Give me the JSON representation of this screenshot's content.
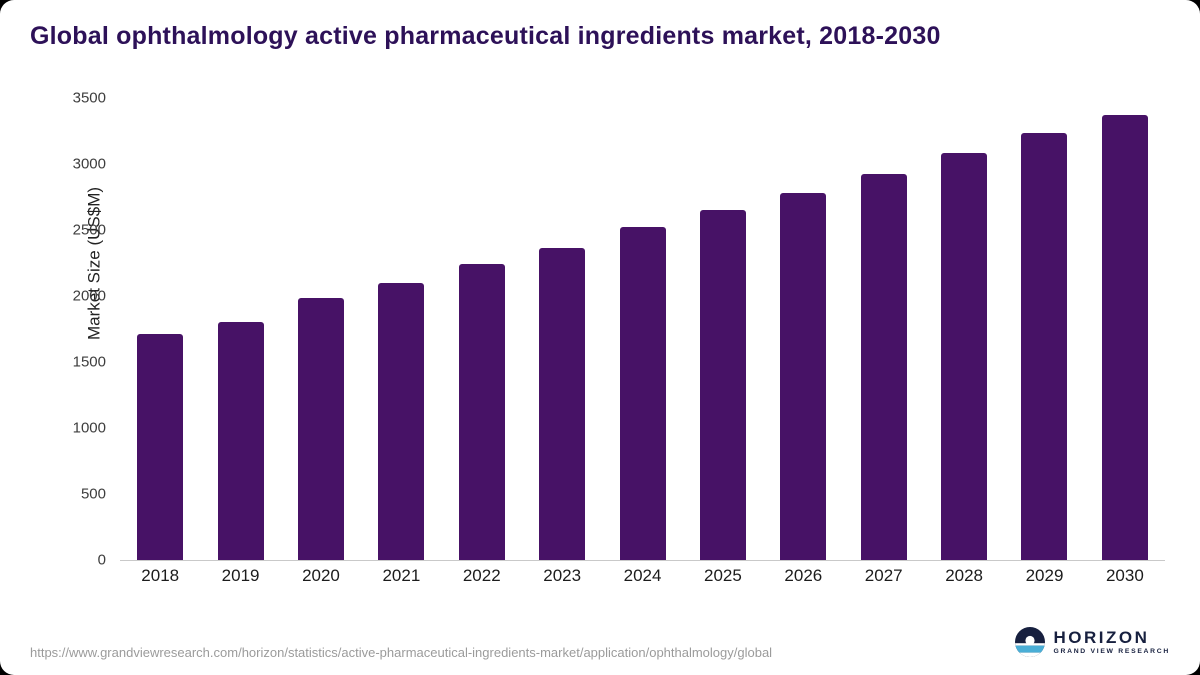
{
  "chart_data": {
    "type": "bar",
    "title": "Global ophthalmology active pharmaceutical ingredients market, 2018-2030",
    "ylabel": "Market Size (US$M)",
    "xlabel": "",
    "ylim": [
      0,
      3500
    ],
    "yticks": [
      0,
      500,
      1000,
      1500,
      2000,
      2500,
      3000,
      3500
    ],
    "grid": false,
    "bar_color": "#471266",
    "categories": [
      "2018",
      "2019",
      "2020",
      "2021",
      "2022",
      "2023",
      "2024",
      "2025",
      "2026",
      "2027",
      "2028",
      "2029",
      "2030"
    ],
    "values": [
      1710,
      1800,
      1985,
      2100,
      2240,
      2360,
      2525,
      2655,
      2780,
      2925,
      3080,
      3235,
      3370
    ]
  },
  "footer": {
    "source_url": "https://www.grandviewresearch.com/horizon/statistics/active-pharmaceutical-ingredients-market/application/ophthalmology/global",
    "logo": {
      "name": "HORIZON",
      "subtitle": "GRAND VIEW RESEARCH",
      "icon": "horizon-circle-icon",
      "navy": "#17203f",
      "light_blue": "#4aaed6"
    }
  }
}
